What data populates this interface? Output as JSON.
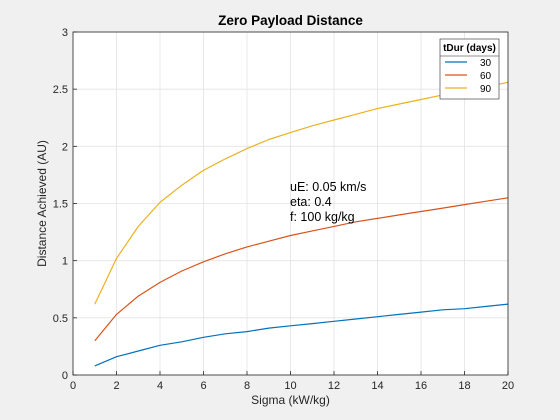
{
  "chart_data": {
    "type": "line",
    "title": "Zero Payload Distance",
    "xlabel": "Sigma (kW/kg)",
    "ylabel": "Distance Achieved (AU)",
    "xlim": [
      0,
      20
    ],
    "ylim": [
      0,
      3
    ],
    "xticks": [
      0,
      2,
      4,
      6,
      8,
      10,
      12,
      14,
      16,
      18,
      20
    ],
    "yticks": [
      0,
      0.5,
      1,
      1.5,
      2,
      2.5,
      3
    ],
    "grid": true,
    "legend": {
      "title": "tDur (days)",
      "placement": "top-right"
    },
    "annotations": [
      "uE: 0.05 km/s",
      "eta: 0.4",
      "f: 100 kg/kg"
    ],
    "x": [
      1,
      2,
      3,
      4,
      5,
      6,
      7,
      8,
      9,
      10,
      11,
      12,
      13,
      14,
      15,
      16,
      17,
      18,
      19,
      20
    ],
    "series": [
      {
        "name": "30",
        "color": "#0072BD",
        "values": [
          0.08,
          0.16,
          0.21,
          0.26,
          0.29,
          0.33,
          0.36,
          0.38,
          0.41,
          0.43,
          0.45,
          0.47,
          0.49,
          0.51,
          0.53,
          0.55,
          0.57,
          0.58,
          0.6,
          0.62
        ]
      },
      {
        "name": "60",
        "color": "#D95319",
        "values": [
          0.3,
          0.53,
          0.69,
          0.81,
          0.91,
          0.99,
          1.06,
          1.12,
          1.17,
          1.22,
          1.26,
          1.3,
          1.34,
          1.37,
          1.4,
          1.43,
          1.46,
          1.49,
          1.52,
          1.55
        ]
      },
      {
        "name": "90",
        "color": "#EDB120",
        "values": [
          0.62,
          1.02,
          1.3,
          1.51,
          1.66,
          1.79,
          1.89,
          1.98,
          2.06,
          2.12,
          2.18,
          2.23,
          2.28,
          2.33,
          2.37,
          2.41,
          2.45,
          2.49,
          2.52,
          2.56
        ]
      }
    ]
  }
}
